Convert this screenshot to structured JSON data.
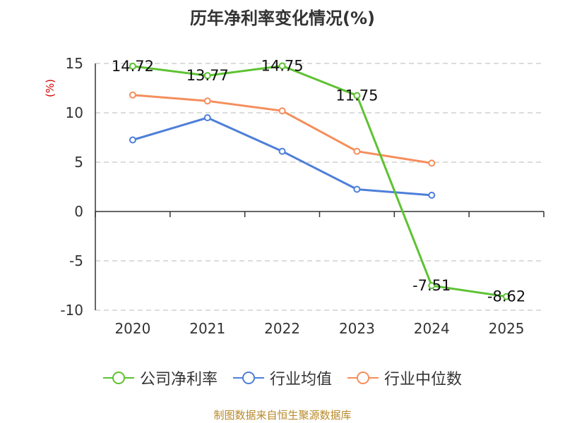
{
  "chart_data": {
    "type": "line",
    "title": "历年净利率变化情况(%)",
    "ylabel": "(%)",
    "xlabel": "",
    "categories": [
      "2020",
      "2021",
      "2022",
      "2023",
      "2024",
      "2025"
    ],
    "ylim": [
      -10,
      15
    ],
    "yticks": [
      15,
      10,
      5,
      0,
      -5,
      -10
    ],
    "grid": "dashed-horizontal",
    "legend_position": "bottom",
    "series": [
      {
        "name": "公司净利率",
        "color": "#5dc232",
        "values": [
          14.72,
          13.77,
          14.75,
          11.75,
          -7.51,
          -8.62
        ],
        "labels": [
          "14.72",
          "13.77",
          "14.75",
          "11.75",
          "-7.51",
          "-8.62"
        ]
      },
      {
        "name": "行业均值",
        "color": "#4e7fd9",
        "values": [
          7.25,
          9.5,
          6.1,
          2.25,
          1.65,
          null
        ]
      },
      {
        "name": "行业中位数",
        "color": "#f58e5c",
        "values": [
          11.8,
          11.2,
          10.2,
          6.1,
          4.9,
          null
        ]
      }
    ]
  },
  "source": "制图数据来自恒生聚源数据库"
}
